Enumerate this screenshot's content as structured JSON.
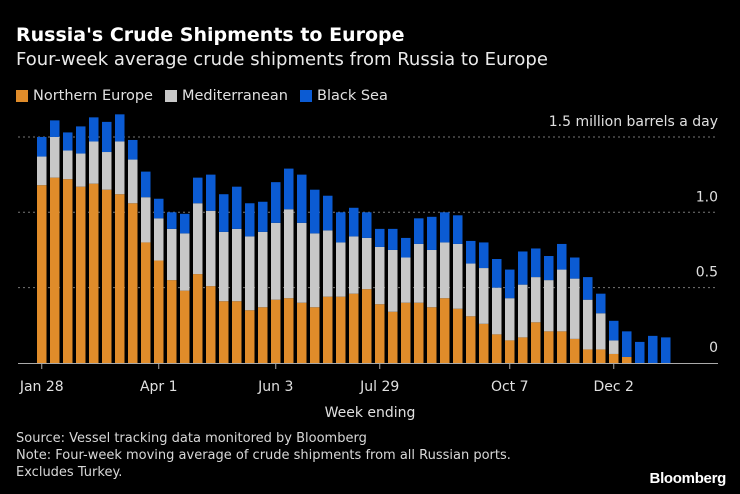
{
  "title": "Russia's Crude Shipments to Europe",
  "subtitle": "Four-week average crude shipments from Russia to Europe",
  "source": "Source: Vessel tracking data monitored by Bloomberg",
  "note_line1": "Note: Four-week moving average of crude shipments from all Russian ports.",
  "note_line2": "Excludes Turkey.",
  "logo": "Bloomberg",
  "chart_data": {
    "type": "bar",
    "stacked": true,
    "title": "Russia's Crude Shipments to Europe",
    "subtitle": "Four-week average crude shipments from Russia to Europe",
    "xlabel": "Week ending",
    "ylabel": "",
    "unit_label": "1.5 million barrels a day",
    "ylim": [
      0,
      1.5
    ],
    "yticks": [
      {
        "value": 0,
        "label": "0"
      },
      {
        "value": 0.5,
        "label": "0.5"
      },
      {
        "value": 1.0,
        "label": "1.0"
      },
      {
        "value": 1.5,
        "label": "1.5 million barrels a day"
      }
    ],
    "grid": true,
    "legend_position": "top-left",
    "xtick_labels": [
      {
        "index": 0,
        "label": "Jan 28"
      },
      {
        "index": 9,
        "label": "Apr 1"
      },
      {
        "index": 18,
        "label": "Jun 3"
      },
      {
        "index": 26,
        "label": "Jul 29"
      },
      {
        "index": 36,
        "label": "Oct 7"
      },
      {
        "index": 44,
        "label": "Dec 2"
      }
    ],
    "series": [
      {
        "name": "Northern Europe",
        "color": "#e08c2a",
        "values": [
          1.18,
          1.23,
          1.22,
          1.17,
          1.19,
          1.15,
          1.12,
          1.06,
          0.8,
          0.68,
          0.55,
          0.48,
          0.59,
          0.51,
          0.41,
          0.41,
          0.35,
          0.37,
          0.42,
          0.43,
          0.4,
          0.37,
          0.44,
          0.44,
          0.46,
          0.49,
          0.39,
          0.34,
          0.4,
          0.4,
          0.37,
          0.43,
          0.36,
          0.31,
          0.26,
          0.19,
          0.15,
          0.17,
          0.27,
          0.21,
          0.21,
          0.16,
          0.09,
          0.09,
          0.06,
          0.04,
          0,
          0,
          0
        ]
      },
      {
        "name": "Mediterranean",
        "color": "#c8c8c8",
        "values": [
          0.19,
          0.27,
          0.19,
          0.22,
          0.28,
          0.25,
          0.35,
          0.29,
          0.3,
          0.28,
          0.34,
          0.38,
          0.47,
          0.5,
          0.46,
          0.48,
          0.49,
          0.5,
          0.51,
          0.59,
          0.53,
          0.49,
          0.44,
          0.36,
          0.38,
          0.34,
          0.38,
          0.41,
          0.3,
          0.39,
          0.38,
          0.37,
          0.43,
          0.35,
          0.37,
          0.31,
          0.28,
          0.35,
          0.3,
          0.34,
          0.41,
          0.4,
          0.33,
          0.24,
          0.09,
          0,
          0,
          0,
          0
        ]
      },
      {
        "name": "Black Sea",
        "color": "#0b5bd3",
        "values": [
          0.13,
          0.11,
          0.12,
          0.18,
          0.16,
          0.2,
          0.18,
          0.13,
          0.17,
          0.13,
          0.11,
          0.13,
          0.17,
          0.24,
          0.25,
          0.28,
          0.22,
          0.2,
          0.27,
          0.27,
          0.32,
          0.29,
          0.23,
          0.2,
          0.19,
          0.17,
          0.12,
          0.14,
          0.13,
          0.17,
          0.22,
          0.2,
          0.19,
          0.15,
          0.17,
          0.19,
          0.19,
          0.22,
          0.19,
          0.16,
          0.17,
          0.14,
          0.15,
          0.13,
          0.13,
          0.17,
          0.14,
          0.18,
          0.17
        ]
      }
    ]
  }
}
